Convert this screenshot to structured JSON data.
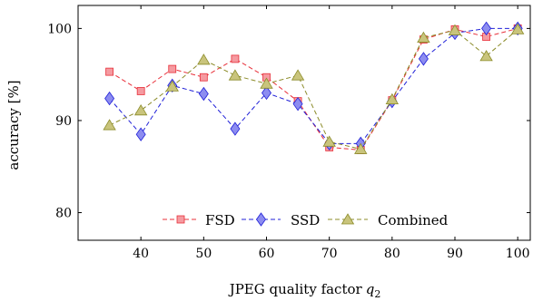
{
  "chart_data": {
    "type": "line",
    "title": "",
    "xlabel": "JPEG quality factor",
    "xlabel_var": "q",
    "xlabel_sub": "2",
    "ylabel": "accuracy [%]",
    "xlim": [
      30,
      102
    ],
    "ylim": [
      77,
      102.5
    ],
    "xticks": [
      40,
      50,
      60,
      70,
      80,
      90,
      100
    ],
    "yticks": [
      80,
      90,
      100
    ],
    "grid": false,
    "legend_placement": "bottom-center",
    "x": [
      35,
      40,
      45,
      50,
      55,
      60,
      65,
      70,
      75,
      80,
      85,
      90,
      95,
      100
    ],
    "series": [
      {
        "name": "FSD",
        "marker": "square",
        "color": "#e8303a",
        "fill": "#f59aa0",
        "values": [
          95.3,
          93.2,
          95.6,
          94.7,
          96.7,
          94.7,
          92.1,
          87.1,
          86.8,
          92.2,
          98.8,
          99.9,
          99.1,
          100.0
        ]
      },
      {
        "name": "SSD",
        "marker": "diamond",
        "color": "#2020d8",
        "fill": "#8c8cf0",
        "values": [
          92.4,
          88.5,
          93.8,
          92.9,
          89.1,
          93.0,
          91.8,
          87.5,
          87.5,
          92.1,
          96.7,
          99.5,
          100.0,
          100.0
        ]
      },
      {
        "name": "Combined",
        "marker": "triangle",
        "color": "#8c8c2a",
        "fill": "#c9c47c",
        "values": [
          89.5,
          91.1,
          93.7,
          96.6,
          94.9,
          94.0,
          94.9,
          87.7,
          86.9,
          92.3,
          99.0,
          99.8,
          97.0,
          99.9
        ]
      }
    ]
  }
}
